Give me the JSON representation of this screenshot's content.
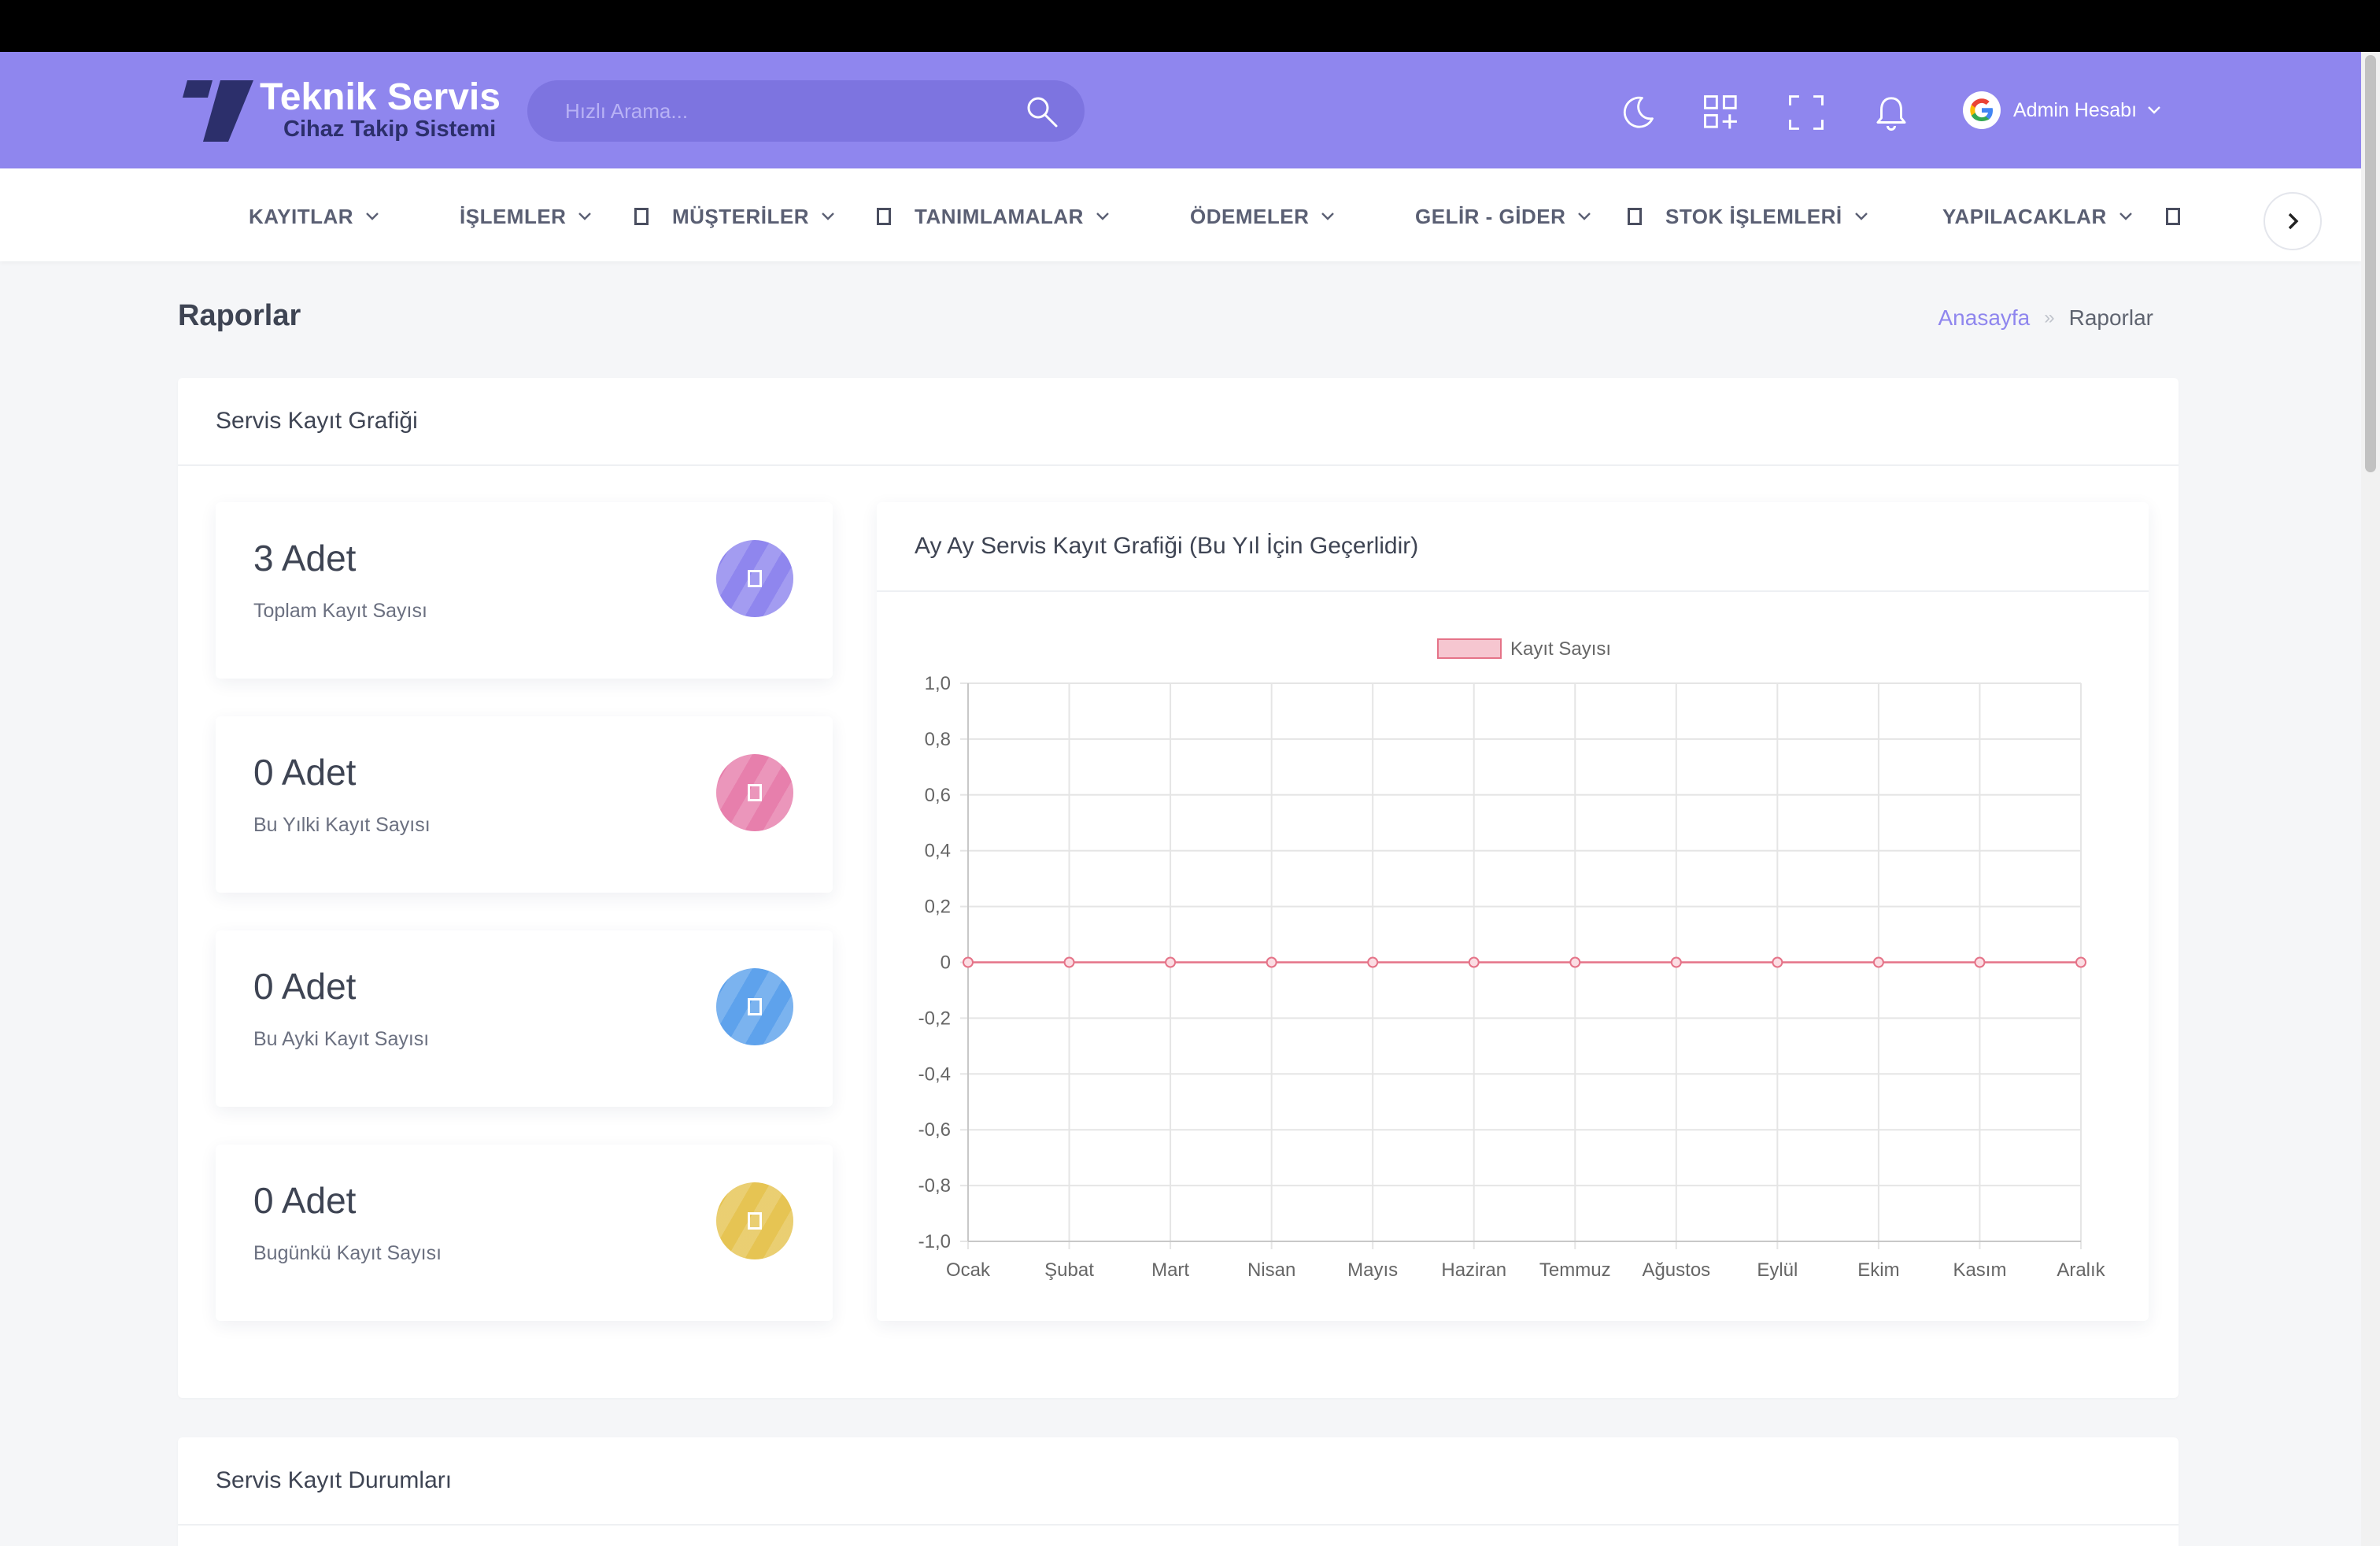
{
  "header": {
    "logo_title": "Teknik Servis",
    "logo_subtitle": "Cihaz Takip Sistemi",
    "search_placeholder": "Hızlı Arama...",
    "icons": [
      "moon-icon",
      "apps-icon",
      "fullscreen-icon",
      "bell-icon"
    ],
    "user_name": "Admin Hesabı",
    "accent": "#8f86ee"
  },
  "nav": {
    "items": [
      {
        "label": "KAYITLAR"
      },
      {
        "label": "İŞLEMLER"
      },
      {
        "label": "MÜŞTERİLER"
      },
      {
        "label": "TANIMLAMALAR"
      },
      {
        "label": "ÖDEMELER"
      },
      {
        "label": "GELİR - GİDER"
      },
      {
        "label": "STOK İŞLEMLERİ"
      },
      {
        "label": "YAPILACAKLAR"
      }
    ]
  },
  "page": {
    "title": "Raporlar",
    "breadcrumb_home": "Anasayfa",
    "breadcrumb_current": "Raporlar"
  },
  "section1": {
    "title": "Servis Kayıt Grafiği",
    "stats": [
      {
        "value": "3 Adet",
        "label": "Toplam Kayıt Sayısı",
        "color": "#8f86ee"
      },
      {
        "value": "0 Adet",
        "label": "Bu Yılki Kayıt Sayısı",
        "color": "#e77fac"
      },
      {
        "value": "0 Adet",
        "label": "Bu Ayki Kayıt Sayısı",
        "color": "#5ea2ec"
      },
      {
        "value": "0 Adet",
        "label": "Bugünkü Kayıt Sayısı",
        "color": "#e6c453"
      }
    ],
    "chart_title": "Ay Ay Servis Kayıt Grafiği (Bu Yıl İçin Geçerlidir)"
  },
  "section2": {
    "title": "Servis Kayıt Durumları"
  },
  "chart_data": {
    "type": "line",
    "x": [
      "Ocak",
      "Şubat",
      "Mart",
      "Nisan",
      "Mayıs",
      "Haziran",
      "Temmuz",
      "Ağustos",
      "Eylül",
      "Ekim",
      "Kasım",
      "Aralık"
    ],
    "series": [
      {
        "name": "Kayıt Sayısı",
        "values": [
          0,
          0,
          0,
          0,
          0,
          0,
          0,
          0,
          0,
          0,
          0,
          0
        ],
        "color": "#e57388"
      }
    ],
    "yticks": [
      "1,0",
      "0,8",
      "0,6",
      "0,4",
      "0,2",
      "0",
      "-0,2",
      "-0,4",
      "-0,6",
      "-0,8",
      "-1,0"
    ],
    "ylim": [
      -1,
      1
    ],
    "grid": true,
    "legend": "top-center"
  }
}
